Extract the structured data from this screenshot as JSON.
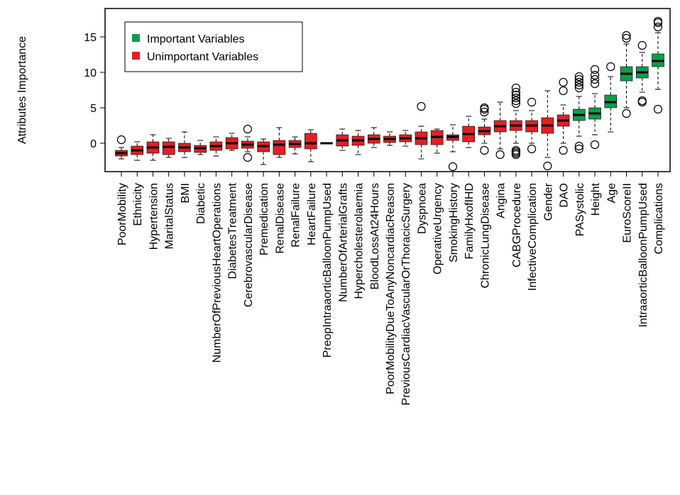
{
  "chart_data": {
    "type": "boxplot",
    "y_label": "Attributes Importance",
    "ylim": [
      -4,
      19
    ],
    "yticks": [
      0,
      5,
      10,
      15
    ],
    "series": [
      {
        "name": "Important Variables",
        "color": "#0f9d4a"
      },
      {
        "name": "Unimportant Variables",
        "color": "#e31f26"
      }
    ],
    "categories": [
      "PoorMobility",
      "Ethnicity",
      "Hypertension",
      "MaritalStatus",
      "BMI",
      "Diabetic",
      "NumberOfPreviousHeartOperations",
      "DiabetesTreatment",
      "CerebrovascularDisease",
      "Premedication",
      "RenalDisease",
      "RenalFailure",
      "HeartFailure",
      "PreopIntraaorticBalloonPumpUsed",
      "NumberOfArterialGrafts",
      "Hypercholesterolaemia",
      "BloodLossAt24Hours",
      "PoorMobilityDueToAnyNoncardiacReason",
      "PreviousCardiacVascularOrThoracicSurgery",
      "Dyspnoea",
      "OperativeUrgency",
      "SmokingHistory",
      "FamilyHxofIHD",
      "ChronicLungDisease",
      "Angina",
      "CABGProcedure",
      "InfectiveComplication",
      "Gender",
      "DAO",
      "PASystolic",
      "Height",
      "Age",
      "EuroScoreII",
      "IntraaorticBalloonPumpUsed",
      "Complications"
    ],
    "boxes": [
      {
        "lo": -2.2,
        "q1": -1.8,
        "median": -1.4,
        "q3": -1.0,
        "hi": -0.6,
        "outliers": [
          0.5
        ],
        "group": 1
      },
      {
        "lo": -2.4,
        "q1": -1.6,
        "median": -1.0,
        "q3": -0.4,
        "hi": 0.2,
        "outliers": [],
        "group": 1
      },
      {
        "lo": -2.4,
        "q1": -1.4,
        "median": -0.6,
        "q3": 0.2,
        "hi": 1.2,
        "outliers": [],
        "group": 1
      },
      {
        "lo": -2.0,
        "q1": -1.6,
        "median": -0.5,
        "q3": 0.2,
        "hi": 0.7,
        "outliers": [],
        "group": 1
      },
      {
        "lo": -2.0,
        "q1": -1.2,
        "median": -0.6,
        "q3": 0.0,
        "hi": 1.6,
        "outliers": [],
        "group": 1
      },
      {
        "lo": -1.6,
        "q1": -1.3,
        "median": -0.7,
        "q3": -0.3,
        "hi": 0.4,
        "outliers": [],
        "group": 1
      },
      {
        "lo": -1.8,
        "q1": -1.0,
        "median": -0.4,
        "q3": 0.2,
        "hi": 0.9,
        "outliers": [],
        "group": 1
      },
      {
        "lo": -1.0,
        "q1": -0.8,
        "median": 0.0,
        "q3": 0.8,
        "hi": 1.4,
        "outliers": [],
        "group": 1
      },
      {
        "lo": -1.2,
        "q1": -0.7,
        "median": -0.2,
        "q3": 0.3,
        "hi": 0.9,
        "outliers": [
          2.0,
          -2.0
        ],
        "group": 1
      },
      {
        "lo": -3.0,
        "q1": -1.2,
        "median": -0.4,
        "q3": 0.2,
        "hi": 0.6,
        "outliers": [],
        "group": 1
      },
      {
        "lo": -2.0,
        "q1": -1.6,
        "median": -0.2,
        "q3": 0.4,
        "hi": 2.2,
        "outliers": [],
        "group": 1
      },
      {
        "lo": -1.5,
        "q1": -0.6,
        "median": -0.1,
        "q3": 0.4,
        "hi": 0.9,
        "outliers": [],
        "group": 1
      },
      {
        "lo": -2.6,
        "q1": -0.8,
        "median": 0.0,
        "q3": 1.4,
        "hi": 1.9,
        "outliers": [],
        "group": 1
      },
      {
        "lo": -0.1,
        "q1": -0.1,
        "median": 0.0,
        "q3": 0.1,
        "hi": 0.1,
        "outliers": [],
        "group": 1
      },
      {
        "lo": -1.0,
        "q1": -0.4,
        "median": 0.4,
        "q3": 1.2,
        "hi": 2.0,
        "outliers": [],
        "group": 1
      },
      {
        "lo": -1.6,
        "q1": -0.3,
        "median": 0.4,
        "q3": 1.0,
        "hi": 1.8,
        "outliers": [],
        "group": 1
      },
      {
        "lo": -0.6,
        "q1": 0.0,
        "median": 0.6,
        "q3": 1.2,
        "hi": 2.2,
        "outliers": [],
        "group": 1
      },
      {
        "lo": -0.3,
        "q1": 0.1,
        "median": 0.6,
        "q3": 1.0,
        "hi": 1.6,
        "outliers": [],
        "group": 1
      },
      {
        "lo": -0.4,
        "q1": 0.2,
        "median": 0.7,
        "q3": 1.2,
        "hi": 1.8,
        "outliers": [],
        "group": 1
      },
      {
        "lo": -2.2,
        "q1": -0.2,
        "median": 0.7,
        "q3": 1.6,
        "hi": 2.4,
        "outliers": [
          5.2
        ],
        "group": 1
      },
      {
        "lo": -1.4,
        "q1": -0.2,
        "median": 0.9,
        "q3": 1.8,
        "hi": 2.0,
        "outliers": [],
        "group": 1
      },
      {
        "lo": -1.2,
        "q1": 0.4,
        "median": 0.9,
        "q3": 1.2,
        "hi": 2.6,
        "outliers": [
          -3.3
        ],
        "group": 1
      },
      {
        "lo": -0.6,
        "q1": 0.2,
        "median": 1.3,
        "q3": 2.4,
        "hi": 3.8,
        "outliers": [],
        "group": 1
      },
      {
        "lo": 0.0,
        "q1": 1.2,
        "median": 1.7,
        "q3": 2.3,
        "hi": 3.4,
        "outliers": [
          4.4,
          4.8,
          5.0,
          -1.0
        ],
        "group": 1
      },
      {
        "lo": -0.8,
        "q1": 1.6,
        "median": 2.4,
        "q3": 3.2,
        "hi": 5.8,
        "outliers": [
          -1.6
        ],
        "group": 1
      },
      {
        "lo": 0.0,
        "q1": 1.8,
        "median": 2.5,
        "q3": 3.2,
        "hi": 4.6,
        "outliers": [
          5.6,
          6.0,
          6.4,
          6.8,
          7.2,
          7.8,
          -1.0,
          -1.2,
          -1.4,
          -1.6
        ],
        "group": 1
      },
      {
        "lo": 0.0,
        "q1": 1.6,
        "median": 2.5,
        "q3": 3.2,
        "hi": 4.6,
        "outliers": [
          5.8,
          -0.8
        ],
        "group": 1
      },
      {
        "lo": -2.0,
        "q1": 1.4,
        "median": 2.5,
        "q3": 3.6,
        "hi": 7.4,
        "outliers": [
          -3.2
        ],
        "group": 1
      },
      {
        "lo": 0.0,
        "q1": 2.4,
        "median": 3.2,
        "q3": 4.0,
        "hi": 5.4,
        "outliers": [
          7.4,
          8.6,
          -1.0
        ],
        "group": 1
      },
      {
        "lo": 1.0,
        "q1": 3.2,
        "median": 4.0,
        "q3": 4.8,
        "hi": 6.6,
        "outliers": [
          7.8,
          8.2,
          8.6,
          9.0,
          9.4,
          -0.4,
          -0.8
        ],
        "group": 0
      },
      {
        "lo": 1.2,
        "q1": 3.4,
        "median": 4.2,
        "q3": 5.0,
        "hi": 7.0,
        "outliers": [
          8.4,
          9.0,
          9.6,
          10.4,
          -0.2
        ],
        "group": 0
      },
      {
        "lo": 1.6,
        "q1": 5.0,
        "median": 5.8,
        "q3": 6.8,
        "hi": 9.4,
        "outliers": [
          10.8
        ],
        "group": 0
      },
      {
        "lo": 5.0,
        "q1": 8.8,
        "median": 9.8,
        "q3": 10.8,
        "hi": 14.0,
        "outliers": [
          14.8,
          15.2,
          4.2
        ],
        "group": 0
      },
      {
        "lo": 7.2,
        "q1": 9.2,
        "median": 10.0,
        "q3": 10.8,
        "hi": 12.8,
        "outliers": [
          13.8,
          6.0,
          5.8
        ],
        "group": 0
      },
      {
        "lo": 7.6,
        "q1": 10.8,
        "median": 11.6,
        "q3": 12.6,
        "hi": 15.6,
        "outliers": [
          16.4,
          17.0,
          17.2,
          4.8
        ],
        "group": 0
      }
    ]
  }
}
